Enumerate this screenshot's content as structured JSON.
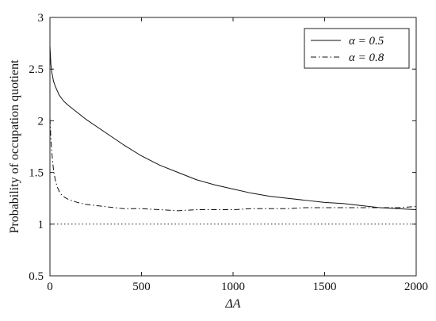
{
  "chart_data": {
    "type": "line",
    "xlabel": "ΔA",
    "ylabel": "Probability of occupation quotient",
    "xlim": [
      0,
      2000
    ],
    "ylim": [
      0.5,
      3
    ],
    "xticks": [
      0,
      500,
      1000,
      1500,
      2000
    ],
    "yticks": [
      0.5,
      1,
      1.5,
      2,
      2.5,
      3
    ],
    "xtick_labels": [
      "0",
      "500",
      "1000",
      "1500",
      "2000"
    ],
    "ytick_labels": [
      "0.5",
      "1",
      "1.5",
      "2",
      "2.5",
      "3"
    ],
    "grid": false,
    "legend_position": "top-right",
    "series": [
      {
        "name": "α = 0.5",
        "style": "solid",
        "x": [
          0,
          5,
          10,
          20,
          30,
          40,
          50,
          75,
          100,
          150,
          200,
          300,
          400,
          500,
          600,
          700,
          800,
          900,
          1000,
          1100,
          1200,
          1300,
          1400,
          1500,
          1600,
          1700,
          1800,
          1900,
          2000
        ],
        "y": [
          2.72,
          2.55,
          2.47,
          2.38,
          2.33,
          2.29,
          2.25,
          2.19,
          2.15,
          2.08,
          2.01,
          1.89,
          1.77,
          1.66,
          1.57,
          1.5,
          1.43,
          1.38,
          1.34,
          1.3,
          1.27,
          1.25,
          1.23,
          1.21,
          1.2,
          1.18,
          1.16,
          1.15,
          1.14
        ]
      },
      {
        "name": "α = 0.8",
        "style": "dashdot",
        "x": [
          0,
          5,
          10,
          15,
          20,
          30,
          40,
          50,
          60,
          80,
          100,
          150,
          200,
          300,
          400,
          500,
          600,
          700,
          800,
          900,
          1000,
          1100,
          1200,
          1300,
          1400,
          1500,
          1600,
          1700,
          1800,
          1900,
          2000
        ],
        "y": [
          2.02,
          1.83,
          1.7,
          1.6,
          1.52,
          1.42,
          1.36,
          1.32,
          1.29,
          1.26,
          1.24,
          1.21,
          1.19,
          1.17,
          1.15,
          1.15,
          1.14,
          1.13,
          1.14,
          1.14,
          1.14,
          1.15,
          1.15,
          1.15,
          1.16,
          1.16,
          1.16,
          1.16,
          1.16,
          1.16,
          1.17
        ]
      }
    ],
    "reference_line": {
      "y": 1,
      "style": "dotted"
    }
  }
}
